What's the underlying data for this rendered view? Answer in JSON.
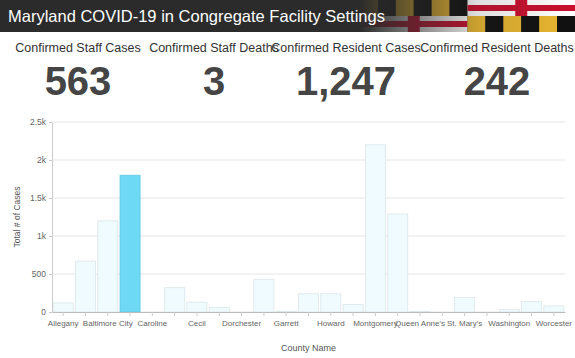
{
  "header": {
    "title": "Maryland COVID-19 in Congregate Facility Settings"
  },
  "stats": [
    {
      "title": "Confirmed Staff Cases",
      "value": 563
    },
    {
      "title": "Confirmed Staff Deaths",
      "value": 3
    },
    {
      "title": "Confirmed Resident Cases",
      "value": 1247,
      "value_label": "1,247"
    },
    {
      "title": "Confirmed Resident Deaths",
      "value": 242
    }
  ],
  "chart_data": {
    "type": "bar",
    "xlabel": "County Name",
    "ylabel": "Total # of Cases",
    "categories": [
      "Allegany",
      null,
      "Baltimore City",
      null,
      "Caroline",
      null,
      "Cecil",
      null,
      "Dorchester",
      null,
      "Garrett",
      null,
      "Howard",
      null,
      "Montgomery",
      null,
      "Queen Anne's",
      null,
      "St. Mary's",
      null,
      "Washington",
      null,
      "Worcester"
    ],
    "values": [
      120,
      670,
      1200,
      1800,
      0,
      320,
      130,
      60,
      0,
      430,
      10,
      240,
      240,
      100,
      2200,
      1290,
      10,
      0,
      190,
      0,
      30,
      140,
      80
    ],
    "colors": [
      "#effbfe",
      "#effbfe",
      "#effbfe",
      "#6dd9f5",
      "#effbfe",
      "#effbfe",
      "#effbfe",
      "#effbfe",
      "#effbfe",
      "#effbfe",
      "#effbfe",
      "#effbfe",
      "#effbfe",
      "#effbfe",
      "#effbfe",
      "#effbfe",
      "#effbfe",
      "#effbfe",
      "#effbfe",
      "#effbfe",
      "#effbfe",
      "#effbfe",
      "#effbfe"
    ],
    "ylim": [
      0,
      2500
    ],
    "yticks": [
      0,
      500,
      {
        "value": 1000,
        "label": "1k"
      },
      {
        "value": 1500,
        "label": "1.5k"
      },
      {
        "value": 2000,
        "label": "2k"
      },
      {
        "value": 2500,
        "label": "2.5k"
      }
    ],
    "grid": true
  }
}
